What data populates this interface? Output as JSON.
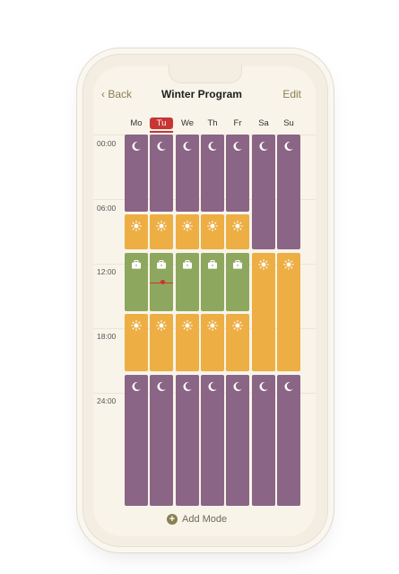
{
  "nav": {
    "back_label": "‹ Back",
    "title": "Winter Program",
    "edit_label": "Edit"
  },
  "days": [
    "Mo",
    "Tu",
    "We",
    "Th",
    "Fr",
    "Sa",
    "Su"
  ],
  "today": "Tu",
  "times": [
    "00:00",
    "06:00",
    "12:00",
    "18:00",
    "24:00"
  ],
  "modes": {
    "night": {
      "color": "#8a6585",
      "icon": "moon-icon"
    },
    "day": {
      "color": "#edae44",
      "icon": "sun-icon"
    },
    "work": {
      "color": "#8ea75e",
      "icon": "briefcase-icon"
    }
  },
  "schedule": {
    "weekdays": [
      "night",
      "day",
      "work",
      "day",
      "night"
    ],
    "weekend": [
      "night",
      "day",
      "night"
    ]
  },
  "add_mode_label": "Add Mode",
  "add_mode_icon": "plus-icon"
}
